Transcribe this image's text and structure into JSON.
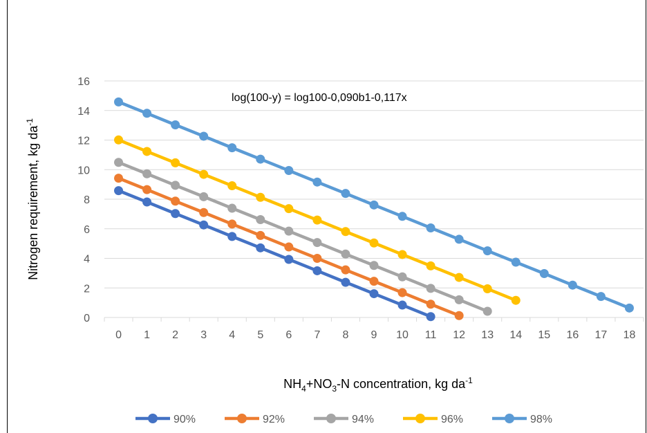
{
  "chart_data": {
    "type": "line",
    "annotation": "log(100-y) = log100-0,090b1-0,117x",
    "ylabel": {
      "main": "Nitrogen requirement, kg da",
      "sup": "-1"
    },
    "xlabel": {
      "p1": "NH",
      "s1": "4",
      "p2": "+NO",
      "s2": "3",
      "p3": "-N concentration, kg da",
      "sup": "-1"
    },
    "ylim": [
      0,
      16
    ],
    "yticks": [
      0,
      2,
      4,
      6,
      8,
      10,
      12,
      14,
      16
    ],
    "xticks": [
      "0",
      "1",
      "2",
      "3",
      "4",
      "5",
      "6",
      "7",
      "8",
      "9",
      "10",
      "11",
      "12",
      "13",
      "14",
      "15",
      "16",
      "17",
      "18"
    ],
    "grid": true,
    "legend_position": "bottom",
    "series": [
      {
        "name": "90%",
        "color": "#4472C4",
        "x": [
          0,
          1,
          2,
          3,
          4,
          5,
          6,
          7,
          8,
          9,
          10,
          11
        ],
        "values": [
          8.58,
          7.81,
          7.03,
          6.26,
          5.48,
          4.71,
          3.93,
          3.16,
          2.38,
          1.61,
          0.84,
          0.06
        ]
      },
      {
        "name": "92%",
        "color": "#ED7D31",
        "x": [
          0,
          1,
          2,
          3,
          4,
          5,
          6,
          7,
          8,
          9,
          10,
          11,
          12
        ],
        "values": [
          9.42,
          8.65,
          7.87,
          7.1,
          6.32,
          5.55,
          4.77,
          4.0,
          3.22,
          2.45,
          1.68,
          0.9,
          0.13
        ]
      },
      {
        "name": "94%",
        "color": "#A5A5A5",
        "x": [
          0,
          1,
          2,
          3,
          4,
          5,
          6,
          7,
          8,
          9,
          10,
          11,
          12,
          13
        ],
        "values": [
          10.49,
          9.72,
          8.94,
          8.17,
          7.39,
          6.62,
          5.84,
          5.07,
          4.29,
          3.52,
          2.75,
          1.97,
          1.2,
          0.42
        ]
      },
      {
        "name": "96%",
        "color": "#FFC000",
        "x": [
          0,
          1,
          2,
          3,
          4,
          5,
          6,
          7,
          8,
          9,
          10,
          11,
          12,
          13,
          14
        ],
        "values": [
          12.01,
          11.23,
          10.46,
          9.68,
          8.91,
          8.13,
          7.36,
          6.59,
          5.81,
          5.04,
          4.26,
          3.49,
          2.71,
          1.94,
          1.16
        ]
      },
      {
        "name": "98%",
        "color": "#5B9BD5",
        "x": [
          0,
          1,
          2,
          3,
          4,
          5,
          6,
          7,
          8,
          9,
          10,
          11,
          12,
          13,
          14,
          15,
          16,
          17,
          18
        ],
        "values": [
          14.58,
          13.81,
          13.03,
          12.26,
          11.48,
          10.71,
          9.94,
          9.16,
          8.39,
          7.61,
          6.84,
          6.06,
          5.29,
          4.51,
          3.74,
          2.97,
          2.19,
          1.42,
          0.64
        ]
      }
    ]
  }
}
